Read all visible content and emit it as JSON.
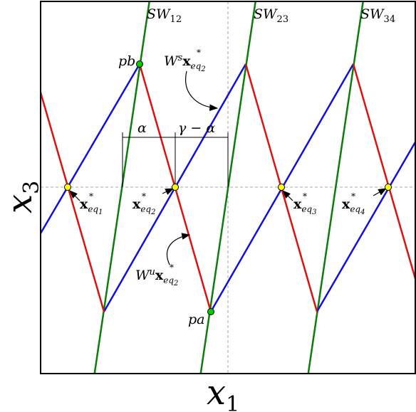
{
  "axes": {
    "xlabel_main": "x",
    "xlabel_sub": "1",
    "ylabel_main": "x",
    "ylabel_sub": "3"
  },
  "switching_lines": [
    {
      "name": "SW",
      "sub": "12"
    },
    {
      "name": "SW",
      "sub": "23"
    },
    {
      "name": "SW",
      "sub": "34"
    }
  ],
  "points": {
    "pb": "pb",
    "pa": "pa"
  },
  "equilibria": [
    {
      "sub": "eq",
      "subsub": "1"
    },
    {
      "sub": "eq",
      "subsub": "2"
    },
    {
      "sub": "eq",
      "subsub": "3"
    },
    {
      "sub": "eq",
      "subsub": "4"
    }
  ],
  "manifolds": {
    "stable_prefix": "W",
    "stable_sup": "s",
    "unstable_prefix": "W",
    "unstable_sup": "u",
    "target_sub": "eq",
    "target_subsub": "2"
  },
  "dimensions": {
    "alpha": "α",
    "gamma_minus_alpha": "γ − α"
  },
  "colors": {
    "switching": "#0a7d0a",
    "stable": "#1010e0",
    "unstable": "#e01010",
    "equilibrium": "#ffff00",
    "special_point": "#00cc00",
    "guide": "#aaaaaa"
  }
}
